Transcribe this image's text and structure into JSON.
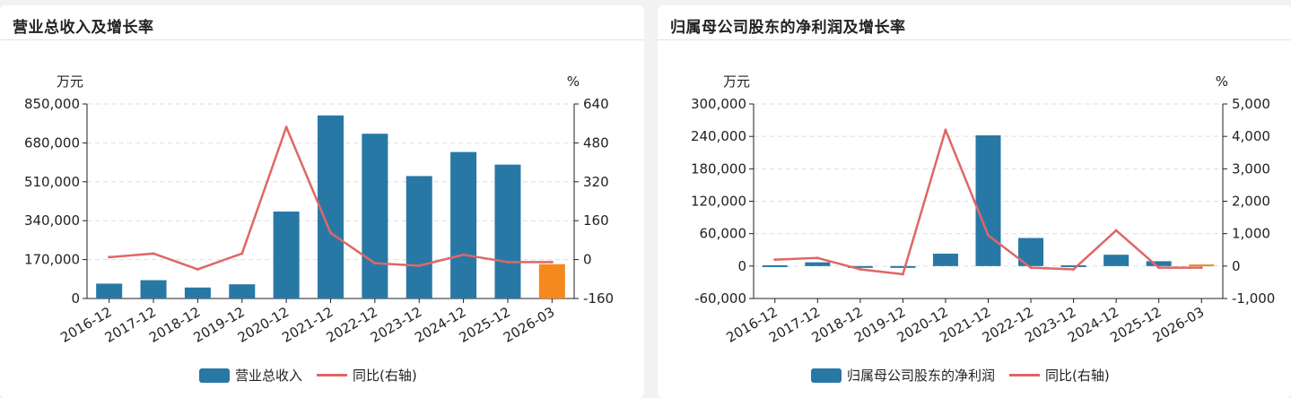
{
  "colors": {
    "bar": "#2878a5",
    "bar_highlight": "#f5891f",
    "line": "#e06666",
    "grid": "#dddddd",
    "axis": "#222222"
  },
  "chart_data": [
    {
      "title": "营业总收入及增长率",
      "type": "bar+line",
      "left_unit": "万元",
      "right_unit": "%",
      "categories": [
        "2016-12",
        "2017-12",
        "2018-12",
        "2019-12",
        "2020-12",
        "2021-12",
        "2022-12",
        "2023-12",
        "2024-12",
        "2025-12",
        "2026-03"
      ],
      "left_ticks": [
        "850,000",
        "680,000",
        "510,000",
        "340,000",
        "170,000",
        "0"
      ],
      "right_ticks": [
        "640",
        "480",
        "320",
        "160",
        "0",
        "-160"
      ],
      "ylim_left": [
        0,
        850000
      ],
      "ylim_right": [
        -160,
        640
      ],
      "series": [
        {
          "name": "营业总收入",
          "type": "bar",
          "values": [
            65000,
            80000,
            48000,
            62000,
            380000,
            800000,
            720000,
            535000,
            640000,
            585000,
            150000
          ],
          "highlight_last": true
        },
        {
          "name": "同比(右轴)",
          "type": "line",
          "values": [
            10,
            25,
            -40,
            25,
            545,
            110,
            -15,
            -25,
            20,
            -10,
            -10
          ]
        }
      ]
    },
    {
      "title": "归属母公司股东的净利润及增长率",
      "type": "bar+line",
      "left_unit": "万元",
      "right_unit": "%",
      "categories": [
        "2016-12",
        "2017-12",
        "2018-12",
        "2019-12",
        "2020-12",
        "2021-12",
        "2022-12",
        "2023-12",
        "2024-12",
        "2025-12",
        "2026-03"
      ],
      "left_ticks": [
        "300,000",
        "240,000",
        "180,000",
        "120,000",
        "60,000",
        "0",
        "-60,000"
      ],
      "right_ticks": [
        "5,000",
        "4,000",
        "3,000",
        "2,000",
        "1,000",
        "0",
        "-1,000"
      ],
      "ylim_left": [
        -60000,
        300000
      ],
      "ylim_right": [
        -1000,
        5000
      ],
      "series": [
        {
          "name": "归属母公司股东的净利润",
          "type": "bar",
          "values": [
            1500,
            7000,
            -1000,
            -1000,
            23000,
            242000,
            52000,
            1500,
            21000,
            9000,
            3000
          ],
          "highlight_last": true
        },
        {
          "name": "同比(右轴)",
          "type": "line",
          "values": [
            200,
            250,
            -100,
            -250,
            4200,
            950,
            -50,
            -100,
            1100,
            -50,
            -50
          ]
        }
      ]
    }
  ]
}
